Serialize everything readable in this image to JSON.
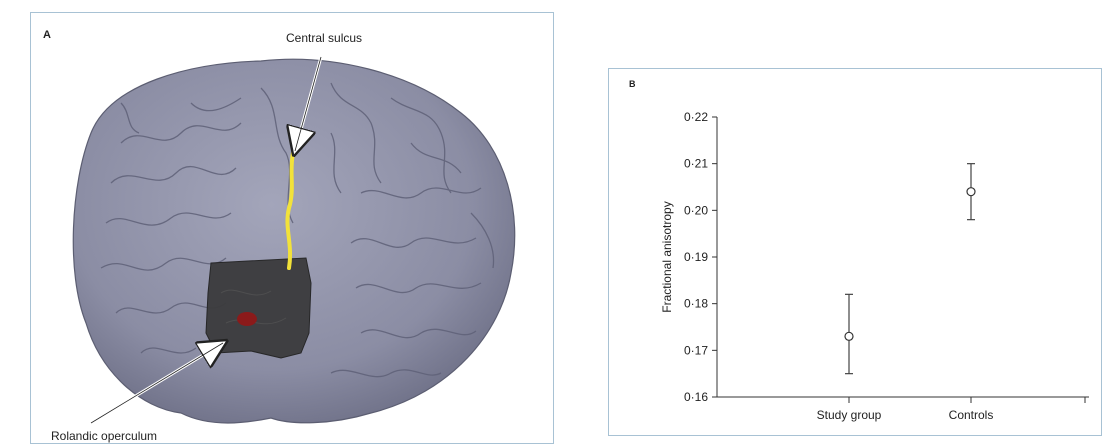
{
  "panel_a": {
    "label": "A",
    "annotation_top": "Central sulcus",
    "annotation_bottom": "Rolandic operculum",
    "colors": {
      "brain": "#8d8fa6",
      "sulcus_line": "#f2e23a",
      "region": "#3a3a3a",
      "focus": "#8b1a1a"
    }
  },
  "panel_b": {
    "label": "B"
  },
  "chart_data": {
    "type": "scatter",
    "title": "",
    "xlabel": "",
    "ylabel": "Fractional anisotropy",
    "categories": [
      "Study group",
      "Controls"
    ],
    "values": [
      0.173,
      0.204
    ],
    "error_low": [
      0.165,
      0.198
    ],
    "error_high": [
      0.182,
      0.21
    ],
    "ylim": [
      0.16,
      0.22
    ],
    "yticks": [
      0.16,
      0.17,
      0.18,
      0.19,
      0.2,
      0.21,
      0.22
    ],
    "ytick_labels": [
      "0·16",
      "0·17",
      "0·18",
      "0·19",
      "0·20",
      "0·21",
      "0·22"
    ],
    "grid": false,
    "marker": "open-circle"
  }
}
